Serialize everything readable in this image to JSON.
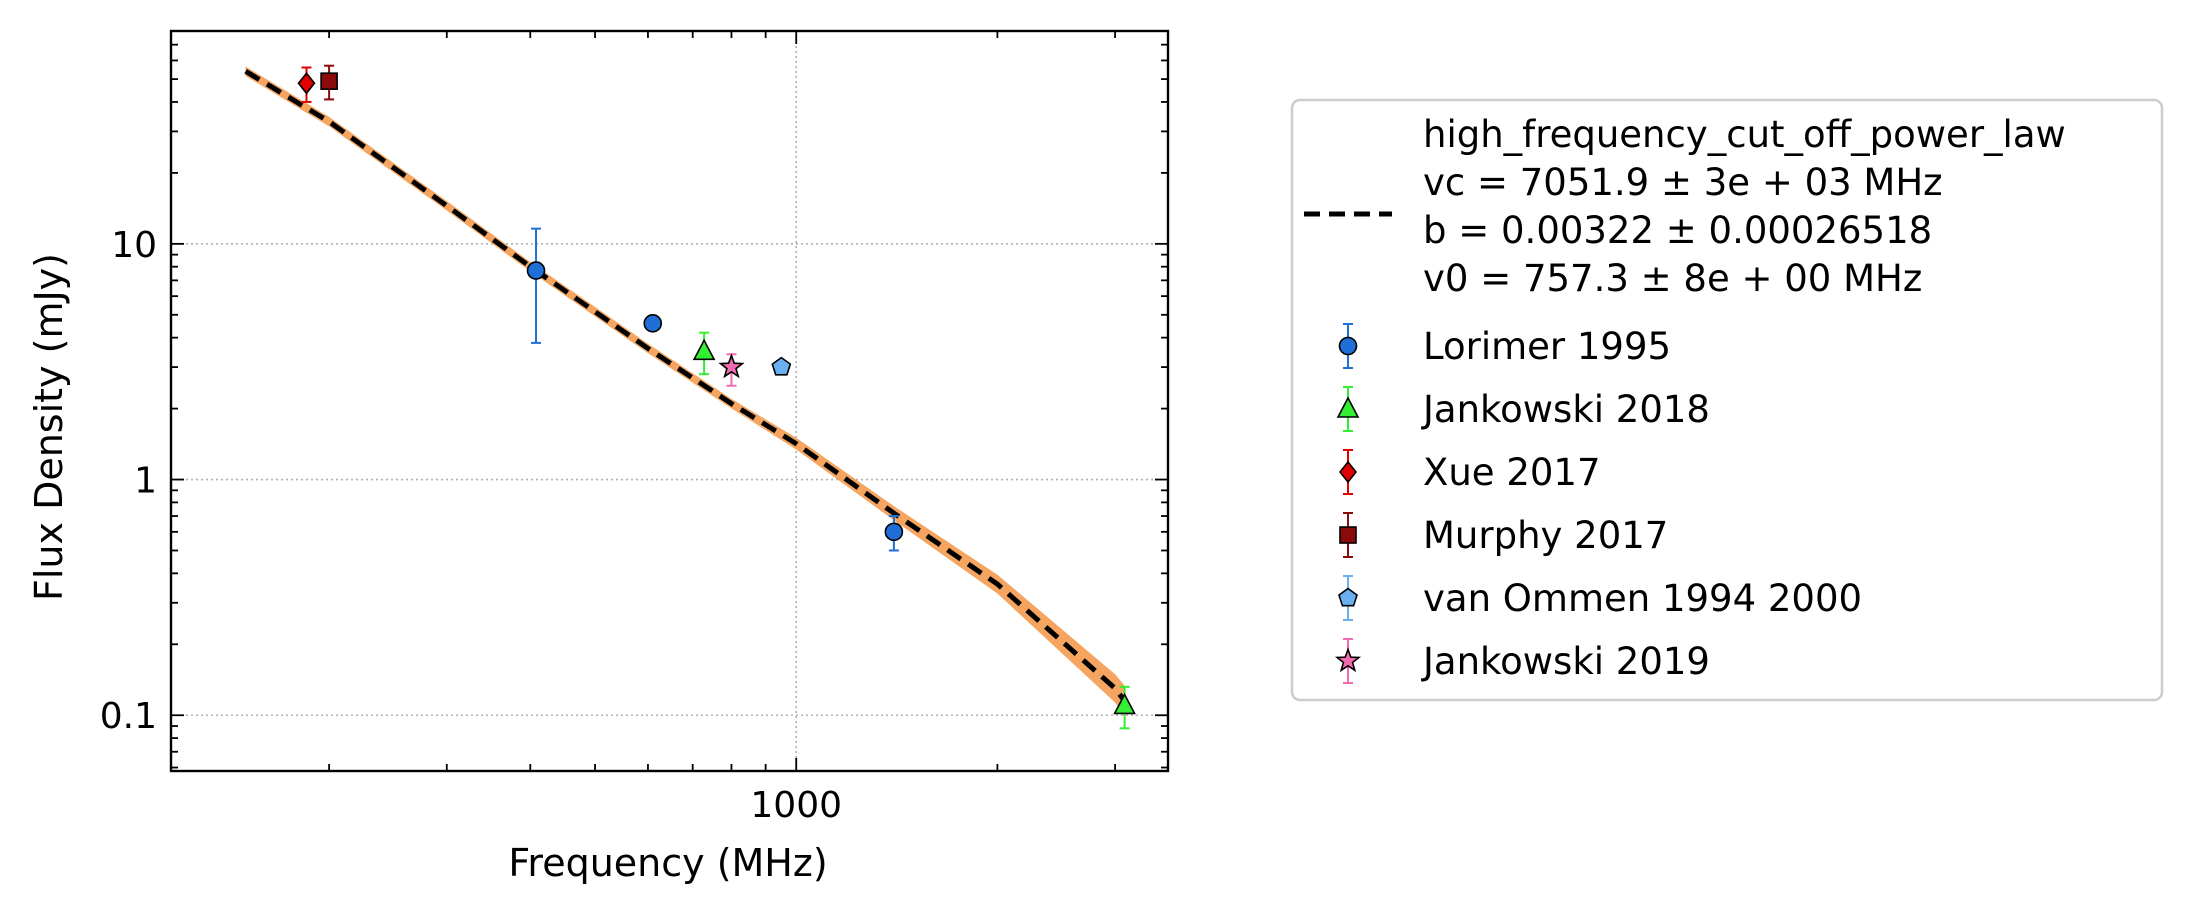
{
  "chart_data": {
    "type": "scatter",
    "xlabel": "Frequency (MHz)",
    "ylabel": "Flux Density (mJy)",
    "xscale": "log",
    "yscale": "log",
    "xlim": [
      116,
      3600
    ],
    "ylim": [
      0.058,
      80
    ],
    "xticks": [
      {
        "value": 1000,
        "label": "1000"
      }
    ],
    "yticks": [
      {
        "value": 0.1,
        "label": "0.1"
      },
      {
        "value": 1,
        "label": "1"
      },
      {
        "value": 10,
        "label": "10"
      }
    ],
    "grid": true,
    "legend_position": "outside-right",
    "fit": {
      "label_lines": [
        "high_frequency_cut_off_power_law",
        "vc = 7051.9 ± 3e + 03 MHz",
        "b = 0.00322 ± 0.00026518",
        "v0 = 757.3 ± 8e + 00 MHz"
      ],
      "line_color": "#000000",
      "band_color": "#f5a55f",
      "points": [
        {
          "x": 150,
          "y": 54
        },
        {
          "x": 200,
          "y": 33
        },
        {
          "x": 300,
          "y": 14.5
        },
        {
          "x": 400,
          "y": 8.0
        },
        {
          "x": 600,
          "y": 3.6
        },
        {
          "x": 800,
          "y": 2.1
        },
        {
          "x": 1000,
          "y": 1.42
        },
        {
          "x": 1400,
          "y": 0.72
        },
        {
          "x": 2000,
          "y": 0.36
        },
        {
          "x": 3000,
          "y": 0.13
        },
        {
          "x": 3100,
          "y": 0.115
        }
      ],
      "band_halfwidth_dex": [
        0.02,
        0.02,
        0.02,
        0.02,
        0.02,
        0.02,
        0.025,
        0.03,
        0.04,
        0.06,
        0.065
      ]
    },
    "series": [
      {
        "name": "Lorimer 1995",
        "marker": "circle",
        "color": "#1f6fd6",
        "ecolor": "#1f6fd6",
        "points": [
          {
            "x": 408,
            "y": 7.7,
            "ylo": 3.8,
            "yhi": 11.6
          },
          {
            "x": 610,
            "y": 4.6,
            "ylo": 4.4,
            "yhi": 4.8
          },
          {
            "x": 1400,
            "y": 0.6,
            "ylo": 0.5,
            "yhi": 0.7
          }
        ]
      },
      {
        "name": "Jankowski 2018",
        "marker": "triangle",
        "color": "#33ee33",
        "ecolor": "#33ee33",
        "points": [
          {
            "x": 728,
            "y": 3.5,
            "ylo": 2.8,
            "yhi": 4.2
          },
          {
            "x": 3100,
            "y": 0.11,
            "ylo": 0.088,
            "yhi": 0.132
          }
        ]
      },
      {
        "name": "Xue 2017",
        "marker": "diamond",
        "color": "#e00000",
        "ecolor": "#e00000",
        "points": [
          {
            "x": 185,
            "y": 48,
            "ylo": 40,
            "yhi": 56
          }
        ]
      },
      {
        "name": "Murphy 2017",
        "marker": "square",
        "color": "#8b0a0a",
        "ecolor": "#8b0a0a",
        "points": [
          {
            "x": 200,
            "y": 49,
            "ylo": 41,
            "yhi": 57
          }
        ]
      },
      {
        "name": "van Ommen 1994 2000",
        "marker": "pentagon",
        "color": "#6ab0f0",
        "ecolor": "#6ab0f0",
        "points": [
          {
            "x": 950,
            "y": 3.0,
            "ylo": 3.0,
            "yhi": 3.0
          }
        ]
      },
      {
        "name": "Jankowski 2019",
        "marker": "star",
        "color": "#f06bb0",
        "ecolor": "#f06bb0",
        "points": [
          {
            "x": 800,
            "y": 3.0,
            "ylo": 2.5,
            "yhi": 3.4
          }
        ]
      }
    ]
  }
}
